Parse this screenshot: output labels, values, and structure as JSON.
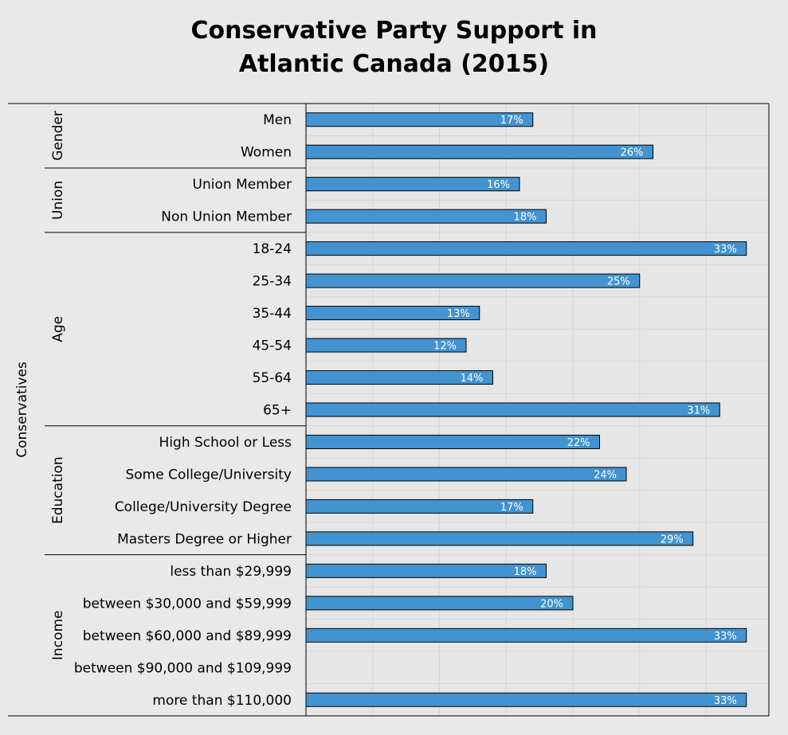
{
  "chart_data": {
    "type": "bar",
    "orientation": "horizontal",
    "title": "Conservative Party Support in\nAtlantic Canada (2015)",
    "outer_group_label": "Conservatives",
    "xlim": [
      0,
      35
    ],
    "grid": true,
    "bar_color": "#4393d0",
    "groups": [
      {
        "name": "Gender",
        "items": [
          {
            "label": "Men",
            "value": 17,
            "value_label": "17%"
          },
          {
            "label": "Women",
            "value": 26,
            "value_label": "26%"
          }
        ]
      },
      {
        "name": "Union",
        "items": [
          {
            "label": "Union Member",
            "value": 16,
            "value_label": "16%"
          },
          {
            "label": "Non Union Member",
            "value": 18,
            "value_label": "18%"
          }
        ]
      },
      {
        "name": "Age",
        "items": [
          {
            "label": "18-24",
            "value": 33,
            "value_label": "33%"
          },
          {
            "label": "25-34",
            "value": 25,
            "value_label": "25%"
          },
          {
            "label": "35-44",
            "value": 13,
            "value_label": "13%"
          },
          {
            "label": "45-54",
            "value": 12,
            "value_label": "12%"
          },
          {
            "label": "55-64",
            "value": 14,
            "value_label": "14%"
          },
          {
            "label": "65+",
            "value": 31,
            "value_label": "31%"
          }
        ]
      },
      {
        "name": "Education",
        "items": [
          {
            "label": "High School or Less",
            "value": 22,
            "value_label": "22%"
          },
          {
            "label": "Some College/University",
            "value": 24,
            "value_label": "24%"
          },
          {
            "label": "College/University Degree",
            "value": 17,
            "value_label": "17%"
          },
          {
            "label": "Masters Degree or Higher",
            "value": 29,
            "value_label": "29%"
          }
        ]
      },
      {
        "name": "Income",
        "items": [
          {
            "label": "less than $29,999",
            "value": 18,
            "value_label": "18%"
          },
          {
            "label": "between $30,000 and $59,999",
            "value": 20,
            "value_label": "20%"
          },
          {
            "label": "between $60,000 and $89,999",
            "value": 33,
            "value_label": "33%"
          },
          {
            "label": "between $90,000 and $109,999",
            "value": null,
            "value_label": ""
          },
          {
            "label": "more than $110,000",
            "value": 33,
            "value_label": "33%"
          }
        ]
      }
    ]
  }
}
